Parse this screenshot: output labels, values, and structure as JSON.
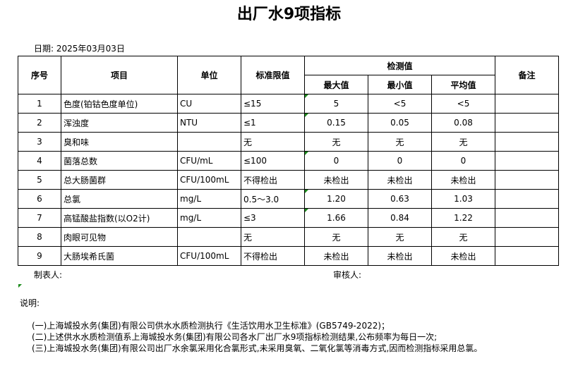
{
  "title": "出厂水9项指标",
  "date": "日期: 2025年03月03日",
  "headers": {
    "no": "序号",
    "item": "项目",
    "unit": "单位",
    "limit": "标准限值",
    "test": "检测值",
    "max": "最大值",
    "min": "最小值",
    "avg": "平均值",
    "remark": "备注"
  },
  "rows": [
    {
      "no": "1",
      "item": "色度(铂钴色度单位)",
      "unit": "CU",
      "limit": "≤15",
      "max": "5",
      "min": "<5",
      "avg": "<5"
    },
    {
      "no": "2",
      "item": "浑浊度",
      "unit": "NTU",
      "limit": "≤1",
      "max": "0.15",
      "min": "0.05",
      "avg": "0.08"
    },
    {
      "no": "3",
      "item": "臭和味",
      "unit": "",
      "limit": "无",
      "max": "无",
      "min": "无",
      "avg": "无"
    },
    {
      "no": "4",
      "item": "菌落总数",
      "unit": "CFU/mL",
      "limit": "≤100",
      "max": "0",
      "min": "0",
      "avg": "0"
    },
    {
      "no": "5",
      "item": "总大肠菌群",
      "unit": "CFU/100mL",
      "limit": "不得检出",
      "max": "未检出",
      "min": "未检出",
      "avg": "未检出"
    },
    {
      "no": "6",
      "item": "总氯",
      "unit": "mg/L",
      "limit": "0.5～3.0",
      "max": "1.20",
      "min": "0.63",
      "avg": "1.03"
    },
    {
      "no": "7",
      "item": "高锰酸盐指数(以O2计)",
      "unit": "mg/L",
      "limit": "≤3",
      "max": "1.66",
      "min": "0.84",
      "avg": "1.22"
    },
    {
      "no": "8",
      "item": "肉眼可见物",
      "unit": "",
      "limit": "无",
      "max": "无",
      "min": "无",
      "avg": "无"
    },
    {
      "no": "9",
      "item": "大肠埃希氏菌",
      "unit": "CFU/100mL",
      "limit": "不得检出",
      "max": "未检出",
      "min": "未检出",
      "avg": "未检出"
    }
  ],
  "maker": "制表人:",
  "reviewer": "审核人:",
  "notes_title": "说明:",
  "notes": [
    "(一)上海城投水务(集团)有限公司供水水质检测执行《生活饮用水卫生标准》(GB5749-2022)；",
    "(二)上述供水水质检测值系上海城投水务(集团)有限公司各水厂出厂水9项指标检测结果,公布频率为每日一次;",
    "(三)上海城投水务(集团)有限公司出厂水余氯采用化合氯形式,未采用臭氧、二氧化氯等消毒方式,因而检测指标采用总氯。"
  ]
}
